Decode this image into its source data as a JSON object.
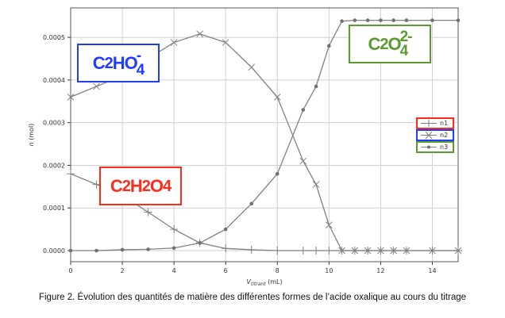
{
  "chart_data": {
    "type": "line",
    "title": "",
    "xlabel": "V",
    "xlabel_sub": "titrant",
    "xlabel_unit": " (mL)",
    "ylabel_italic": "n",
    "ylabel_unit": " (mol)",
    "xlim": [
      0,
      15
    ],
    "ylim": [
      -2.6e-05,
      0.000569
    ],
    "grid": true,
    "x_ticks": [
      "0",
      "2",
      "4",
      "6",
      "8",
      "10",
      "12",
      "14"
    ],
    "x_tick_values": [
      0,
      2,
      4,
      6,
      8,
      10,
      12,
      14
    ],
    "y_ticks": [
      "0.0000",
      "0.0001",
      "0.0002",
      "0.0003",
      "0.0004",
      "0.0005"
    ],
    "y_tick_values": [
      0,
      0.0001,
      0.0002,
      0.0003,
      0.0004,
      0.0005
    ],
    "x": [
      0,
      1,
      2,
      3,
      4,
      5,
      6,
      7,
      8,
      9,
      9.5,
      10,
      10.5,
      11,
      11.5,
      12,
      12.5,
      13,
      14,
      15
    ],
    "series": [
      {
        "name": "n1",
        "marker": "plus",
        "values": [
          0.00018,
          0.000155,
          0.00013,
          9e-05,
          5e-05,
          1.8e-05,
          5e-06,
          2e-06,
          0,
          0,
          0,
          0,
          0,
          0,
          0,
          0,
          0,
          0,
          0,
          0
        ]
      },
      {
        "name": "n2",
        "marker": "x",
        "values": [
          0.00036,
          0.000385,
          0.00041,
          0.00045,
          0.000488,
          0.000508,
          0.000488,
          0.00043,
          0.00036,
          0.00021,
          0.000155,
          6e-05,
          0,
          0,
          0,
          0,
          0,
          0,
          0,
          0
        ]
      },
      {
        "name": "n3",
        "marker": "dot",
        "values": [
          0,
          0,
          2e-06,
          3e-06,
          6e-06,
          1.8e-05,
          5e-05,
          0.00011,
          0.00018,
          0.00033,
          0.000385,
          0.00048,
          0.000538,
          0.00054,
          0.00054,
          0.00054,
          0.00054,
          0.00054,
          0.00054,
          0.00054
        ]
      }
    ],
    "legend_placement": "right",
    "line_color": "#808080",
    "annotations": [
      {
        "id": "n1",
        "label_parts": [
          "C",
          "2",
          "H",
          "2",
          "O",
          "4"
        ],
        "color": "#ff2a1a"
      },
      {
        "id": "n2",
        "label_parts": [
          "C",
          "2",
          "HO",
          "4",
          "-"
        ],
        "color": "#1f3cff"
      },
      {
        "id": "n3",
        "label_parts": [
          "C",
          "2",
          "O",
          "4",
          "2-"
        ],
        "color": "#5a9a2e"
      }
    ]
  },
  "caption": "Figure 2. Évolution des quantités de matière des différentes formes de l’acide oxalique au cours du titrage"
}
